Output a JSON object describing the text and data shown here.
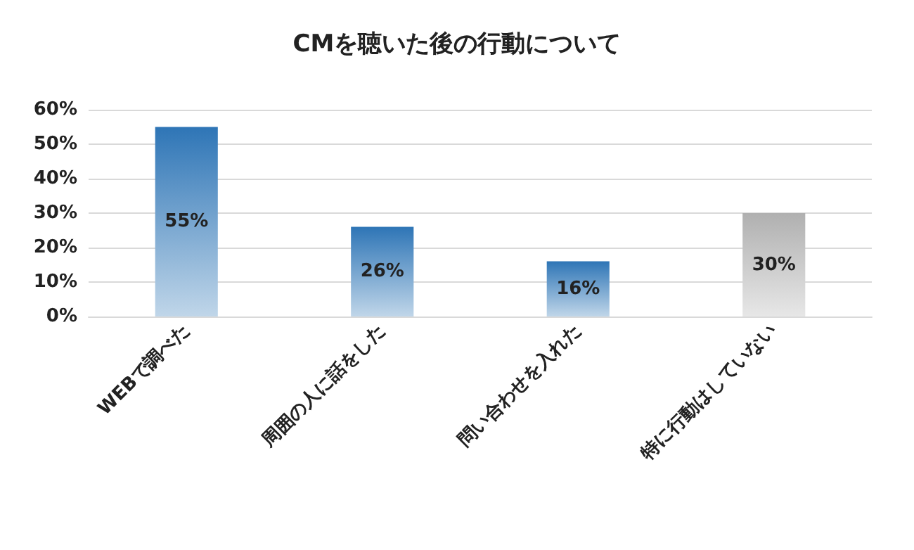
{
  "chart_data": {
    "type": "bar",
    "title": "CMを聴いた後の行動について",
    "categories": [
      "WEBで調べた",
      "周囲の人に話をした",
      "問い合わせを入れた",
      "特に行動はしていない"
    ],
    "values": [
      55,
      26,
      16,
      30
    ],
    "colors": [
      "#2e75b6",
      "#2e75b6",
      "#2e75b6",
      "#b0b0b0"
    ],
    "value_labels": [
      "55%",
      "26%",
      "16%",
      "30%"
    ],
    "ylim": [
      0,
      60
    ],
    "yticks": [
      {
        "value": 0,
        "label": "0%"
      },
      {
        "value": 10,
        "label": "10%"
      },
      {
        "value": 20,
        "label": "20%"
      },
      {
        "value": 30,
        "label": "30%"
      },
      {
        "value": 40,
        "label": "40%"
      },
      {
        "value": 50,
        "label": "50%"
      },
      {
        "value": 60,
        "label": "60%"
      }
    ],
    "grid": "y"
  }
}
